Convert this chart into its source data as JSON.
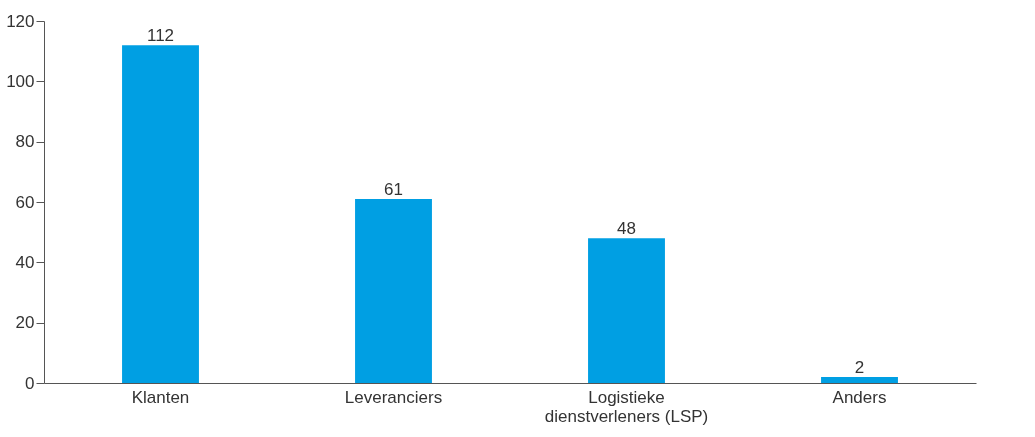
{
  "chart_data": {
    "type": "bar",
    "categories": [
      "Klanten",
      "Leveranciers",
      "Logistieke\ndienstverleners (LSP)",
      "Anders"
    ],
    "values": [
      112,
      61,
      48,
      2
    ],
    "color": "#009fe3",
    "ylim": [
      0,
      120
    ],
    "yticks": [
      0,
      20,
      40,
      60,
      80,
      100,
      120
    ],
    "data_labels": true,
    "grid": false
  }
}
